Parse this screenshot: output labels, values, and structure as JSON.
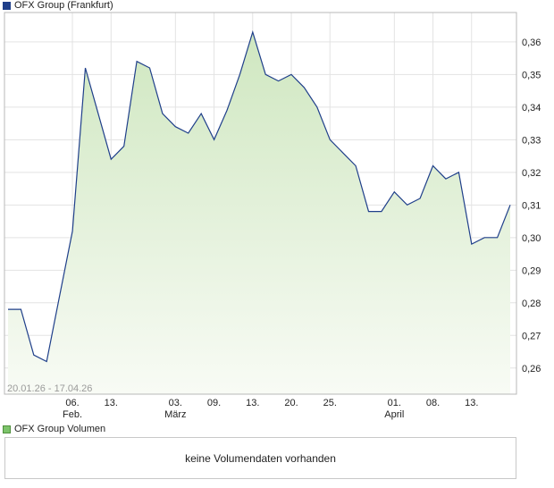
{
  "price_legend": {
    "label": "OFX Group (Frankfurt)",
    "color": "#1f3f8a"
  },
  "volume_legend": {
    "label": "OFX Group Volumen",
    "color": "#66b04f"
  },
  "volume_panel": {
    "message": "keine Volumendaten vorhanden"
  },
  "chart_data": {
    "type": "area",
    "title": "OFX Group (Frankfurt)",
    "date_range": "20.01.26 - 17.04.26",
    "ylim": [
      0.252,
      0.369
    ],
    "y_ticks": [
      "0,26",
      "0,27",
      "0,28",
      "0,29",
      "0,30",
      "0,31",
      "0,32",
      "0,33",
      "0,34",
      "0,35",
      "0,36"
    ],
    "y_tick_values": [
      0.26,
      0.27,
      0.28,
      0.29,
      0.3,
      0.31,
      0.32,
      0.33,
      0.34,
      0.35,
      0.36
    ],
    "x_ticks": [
      {
        "label": "06.",
        "month": "Feb.",
        "index": 5
      },
      {
        "label": "13.",
        "month": "",
        "index": 8
      },
      {
        "label": "03.",
        "month": "März",
        "index": 13
      },
      {
        "label": "09.",
        "month": "",
        "index": 16
      },
      {
        "label": "13.",
        "month": "",
        "index": 19
      },
      {
        "label": "20.",
        "month": "",
        "index": 22
      },
      {
        "label": "25.",
        "month": "",
        "index": 25
      },
      {
        "label": "01.",
        "month": "April",
        "index": 30
      },
      {
        "label": "08.",
        "month": "",
        "index": 33
      },
      {
        "label": "13.",
        "month": "",
        "index": 36
      }
    ],
    "grid": true,
    "series": [
      {
        "name": "OFX Group (Frankfurt)",
        "values": [
          0.278,
          0.278,
          0.264,
          0.262,
          0.282,
          0.302,
          0.352,
          0.338,
          0.324,
          0.328,
          0.354,
          0.352,
          0.338,
          0.334,
          0.332,
          0.338,
          0.33,
          0.339,
          0.35,
          0.363,
          0.35,
          0.348,
          0.35,
          0.346,
          0.34,
          0.33,
          0.326,
          0.322,
          0.308,
          0.308,
          0.314,
          0.31,
          0.312,
          0.322,
          0.318,
          0.32,
          0.298,
          0.3,
          0.3,
          0.31
        ],
        "color": "#1f3f8a",
        "fill_top": "#d2e9c4",
        "fill_bottom": "#f7fbf4"
      }
    ]
  }
}
